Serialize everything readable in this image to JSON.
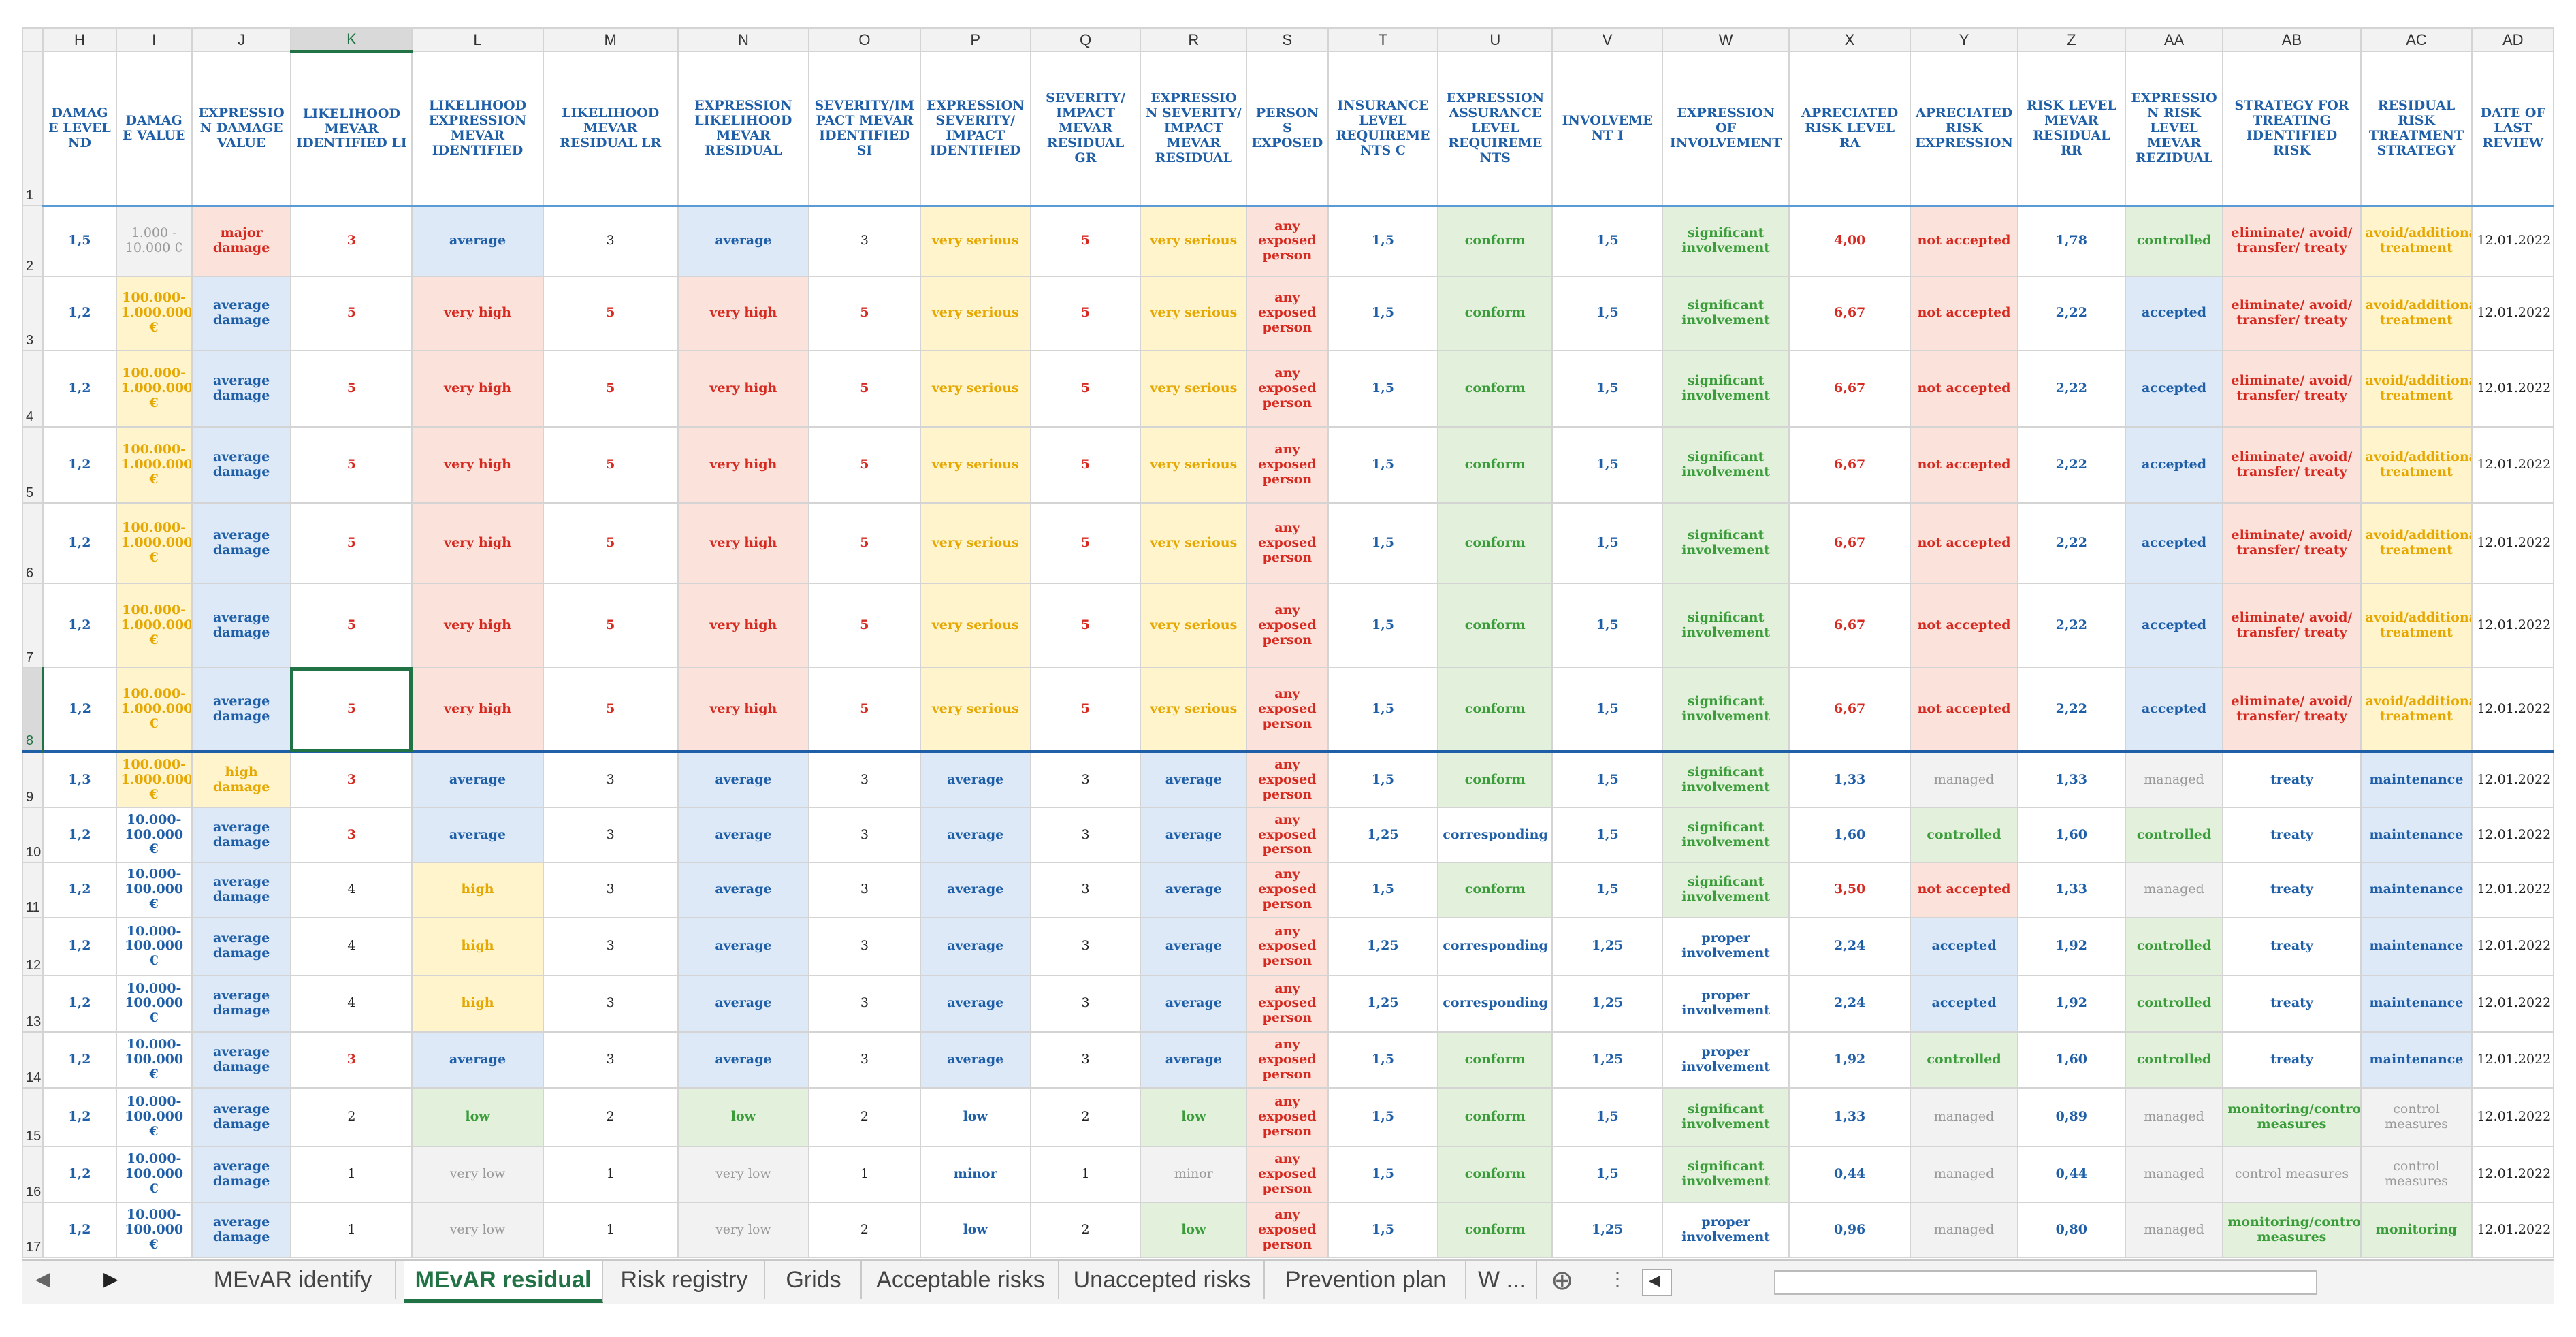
{
  "columns": [
    "H",
    "I",
    "J",
    "K",
    "L",
    "M",
    "N",
    "O",
    "P",
    "Q",
    "R",
    "S",
    "T",
    "U",
    "V",
    "W",
    "X",
    "Y",
    "Z",
    "AA",
    "AB",
    "AC",
    "AD"
  ],
  "selected_column": "K",
  "selected_row": "8",
  "header_row_number": "1",
  "headers": [
    "DAMAGE LEVEL ND",
    "DAMAGE VALUE",
    "EXPRESSION DAMAGE VALUE",
    "LIKELIHOOD MEvAR IDENTIFIED LI",
    "LIKELIHOOD EXPRESSION MEvAR IDENTIFIED",
    "LIKELIHOOD MEvAR RESIDUAL LR",
    "EXPRESSION LIKELIHOOD MEvAR RESIDUAL",
    "SEVERITY/IMPACT MEvAR IDENTIFIED SI",
    "EXPRESSION SEVERITY/ IMPACT IDENTIFIED",
    "SEVERITY/ IMPACT MEvAR RESIDUAL GR",
    "EXPRESSION SEVERITY/ IMPACT MEvAR RESIDUAL",
    "PERSONS EXPOSED",
    "INSURANCE LEVEL REQUIREMENTS C",
    "EXPRESSION ASSURANCE LEVEL REQUIREMENTS",
    "INVOLVEMENT I",
    "EXPRESSION OF INVOLVEMENT",
    "APRECIATED RISK LEVEL RA",
    "APRECIATED RISK EXPRESSION",
    "RISK LEVEL MEvAR RESIDUAL RR",
    "EXPRESSION RISK LEVEL MEvAR REZIDUAL",
    "STRATEGY FOR TREATING IDENTIFIED RISK",
    "RESIDUAL RISK TREATMENT STRATEGY",
    "DATE OF LAST REVIEW"
  ],
  "rows": [
    {
      "n": "2",
      "h": "70",
      "sep": false,
      "cells": [
        "1,5",
        "1.000 - 10.000 €",
        "major damage",
        "3",
        "average",
        "3",
        "average",
        "3",
        "very serious",
        "5",
        "very serious",
        "any exposed person",
        "1,5",
        "conform",
        "1,5",
        "significant involvement",
        "4,00",
        "not accepted",
        "1,78",
        "controlled",
        "eliminate/ avoid/ transfer/ treaty",
        "avoid/additional treatment",
        "12.01.2022"
      ]
    },
    {
      "n": "3",
      "h": "74",
      "sep": false,
      "cells": [
        "1,2",
        "100.000-1.000.000 €",
        "average damage",
        "5",
        "very high",
        "5",
        "very high",
        "5",
        "very serious",
        "5",
        "very serious",
        "any exposed person",
        "1,5",
        "conform",
        "1,5",
        "significant involvement",
        "6,67",
        "not accepted",
        "2,22",
        "accepted",
        "eliminate/ avoid/ transfer/ treaty",
        "avoid/additional treatment",
        "12.01.2022"
      ]
    },
    {
      "n": "4",
      "h": "76",
      "sep": false,
      "cells": [
        "1,2",
        "100.000-1.000.000 €",
        "average damage",
        "5",
        "very high",
        "5",
        "very high",
        "5",
        "very serious",
        "5",
        "very serious",
        "any exposed person",
        "1,5",
        "conform",
        "1,5",
        "significant involvement",
        "6,67",
        "not accepted",
        "2,22",
        "accepted",
        "eliminate/ avoid/ transfer/ treaty",
        "avoid/additional treatment",
        "12.01.2022"
      ]
    },
    {
      "n": "5",
      "h": "76",
      "sep": false,
      "cells": [
        "1,2",
        "100.000-1.000.000 €",
        "average damage",
        "5",
        "very high",
        "5",
        "very high",
        "5",
        "very serious",
        "5",
        "very serious",
        "any exposed person",
        "1,5",
        "conform",
        "1,5",
        "significant involvement",
        "6,67",
        "not accepted",
        "2,22",
        "accepted",
        "eliminate/ avoid/ transfer/ treaty",
        "avoid/additional treatment",
        "12.01.2022"
      ]
    },
    {
      "n": "6",
      "h": "80",
      "sep": false,
      "cells": [
        "1,2",
        "100.000-1.000.000 €",
        "average damage",
        "5",
        "very high",
        "5",
        "very high",
        "5",
        "very serious",
        "5",
        "very serious",
        "any exposed person",
        "1,5",
        "conform",
        "1,5",
        "significant involvement",
        "6,67",
        "not accepted",
        "2,22",
        "accepted",
        "eliminate/ avoid/ transfer/ treaty",
        "avoid/additional treatment",
        "12.01.2022"
      ]
    },
    {
      "n": "7",
      "h": "84",
      "sep": false,
      "cells": [
        "1,2",
        "100.000-1.000.000 €",
        "average damage",
        "5",
        "very high",
        "5",
        "very high",
        "5",
        "very serious",
        "5",
        "very serious",
        "any exposed person",
        "1,5",
        "conform",
        "1,5",
        "significant involvement",
        "6,67",
        "not accepted",
        "2,22",
        "accepted",
        "eliminate/ avoid/ transfer/ treaty",
        "avoid/additional treatment",
        "12.01.2022"
      ]
    },
    {
      "n": "8",
      "h": "84",
      "sep": false,
      "cells": [
        "1,2",
        "100.000-1.000.000 €",
        "average damage",
        "5",
        "very high",
        "5",
        "very high",
        "5",
        "very serious",
        "5",
        "very serious",
        "any exposed person",
        "1,5",
        "conform",
        "1,5",
        "significant involvement",
        "6,67",
        "not accepted",
        "2,22",
        "accepted",
        "eliminate/ avoid/ transfer/ treaty",
        "avoid/additional treatment",
        "12.01.2022"
      ]
    },
    {
      "n": "9",
      "h": "54",
      "sep": true,
      "cells": [
        "1,3",
        "100.000-1.000.000 €",
        "high damage",
        "3",
        "average",
        "3",
        "average",
        "3",
        "average",
        "3",
        "average",
        "any exposed person",
        "1,5",
        "conform",
        "1,5",
        "significant involvement",
        "1,33",
        "managed",
        "1,33",
        "managed",
        "treaty",
        "maintenance",
        "12.01.2022"
      ]
    },
    {
      "n": "10",
      "h": "34",
      "sep": false,
      "cells": [
        "1,2",
        "10.000-100.000 €",
        "average damage",
        "3",
        "average",
        "3",
        "average",
        "3",
        "average",
        "3",
        "average",
        "any exposed person",
        "1,25",
        "corresponding",
        "1,5",
        "significant involvement",
        "1,60",
        "controlled",
        "1,60",
        "controlled",
        "treaty",
        "maintenance",
        "12.01.2022"
      ]
    },
    {
      "n": "11",
      "h": "54",
      "sep": false,
      "cells": [
        "1,2",
        "10.000-100.000 €",
        "average damage",
        "4",
        "high",
        "3",
        "average",
        "3",
        "average",
        "3",
        "average",
        "any exposed person",
        "1,5",
        "conform",
        "1,5",
        "significant involvement",
        "3,50",
        "not accepted",
        "1,33",
        "managed",
        "treaty",
        "maintenance",
        "12.01.2022"
      ]
    },
    {
      "n": "12",
      "h": "58",
      "sep": false,
      "cells": [
        "1,2",
        "10.000-100.000 €",
        "average damage",
        "4",
        "high",
        "3",
        "average",
        "3",
        "average",
        "3",
        "average",
        "any exposed person",
        "1,25",
        "corresponding",
        "1,25",
        "proper involvement",
        "2,24",
        "accepted",
        "1,92",
        "controlled",
        "treaty",
        "maintenance",
        "12.01.2022"
      ]
    },
    {
      "n": "13",
      "h": "56",
      "sep": false,
      "cells": [
        "1,2",
        "10.000-100.000 €",
        "average damage",
        "4",
        "high",
        "3",
        "average",
        "3",
        "average",
        "3",
        "average",
        "any exposed person",
        "1,25",
        "corresponding",
        "1,25",
        "proper involvement",
        "2,24",
        "accepted",
        "1,92",
        "controlled",
        "treaty",
        "maintenance",
        "12.01.2022"
      ]
    },
    {
      "n": "14",
      "h": "56",
      "sep": false,
      "cells": [
        "1,2",
        "10.000-100.000 €",
        "average damage",
        "3",
        "average",
        "3",
        "average",
        "3",
        "average",
        "3",
        "average",
        "any exposed person",
        "1,5",
        "conform",
        "1,25",
        "proper involvement",
        "1,92",
        "controlled",
        "1,60",
        "controlled",
        "treaty",
        "maintenance",
        "12.01.2022"
      ]
    },
    {
      "n": "15",
      "h": "58",
      "sep": false,
      "cells": [
        "1,2",
        "10.000-100.000 €",
        "average damage",
        "2",
        "low",
        "2",
        "low",
        "2",
        "low",
        "2",
        "low",
        "any exposed person",
        "1,5",
        "conform",
        "1,5",
        "significant involvement",
        "1,33",
        "managed",
        "0,89",
        "managed",
        "monitoring/control measures",
        "control measures",
        "12.01.2022"
      ]
    },
    {
      "n": "16",
      "h": "56",
      "sep": false,
      "cells": [
        "1,2",
        "10.000-100.000 €",
        "average damage",
        "1",
        "very low",
        "1",
        "very low",
        "1",
        "minor",
        "1",
        "minor",
        "any exposed person",
        "1,5",
        "conform",
        "1,5",
        "significant involvement",
        "0,44",
        "managed",
        "0,44",
        "managed",
        "control measures",
        "control measures",
        "12.01.2022"
      ]
    },
    {
      "n": "17",
      "h": "54",
      "sep": false,
      "cells": [
        "1,2",
        "10.000-100.000 €",
        "average damage",
        "1",
        "very low",
        "1",
        "very low",
        "2",
        "low",
        "2",
        "low",
        "any exposed person",
        "1,5",
        "conform",
        "1,25",
        "proper involvement",
        "0,96",
        "managed",
        "0,80",
        "managed",
        "monitoring/control measures",
        "monitoring",
        "12.01.2022"
      ]
    }
  ],
  "sheet_tabs": [
    {
      "label": "MEvAR identify",
      "active": false
    },
    {
      "label": "MEvAR residual",
      "active": true
    },
    {
      "label": "Risk registry",
      "active": false
    },
    {
      "label": "Grids",
      "active": false
    },
    {
      "label": "Acceptable risks",
      "active": false
    },
    {
      "label": "Unaccepted risks",
      "active": false
    },
    {
      "label": "Prevention plan",
      "active": false
    },
    {
      "label": "W ...",
      "active": false
    }
  ],
  "icons": {
    "prev_sheet": "◀",
    "next_sheet": "▶",
    "add_sheet": "⊕",
    "scroll_left": "◀",
    "dropdown": "▼",
    "more": "⋮"
  }
}
